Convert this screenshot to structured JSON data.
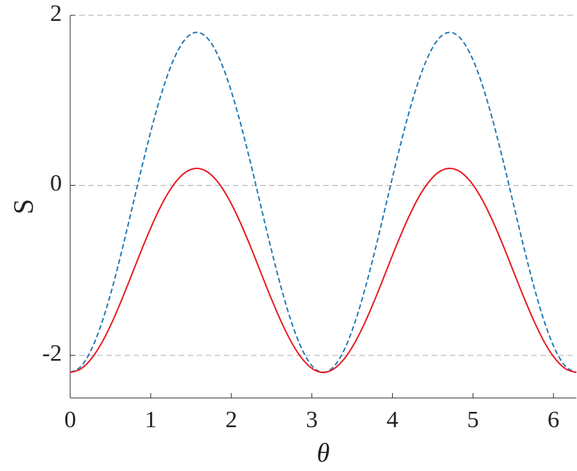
{
  "chart_data": {
    "type": "line",
    "xlabel": "θ",
    "ylabel": "S",
    "x": [
      0,
      0.131,
      0.262,
      0.393,
      0.524,
      0.654,
      0.785,
      0.916,
      1.047,
      1.178,
      1.309,
      1.44,
      1.571,
      1.702,
      1.833,
      1.963,
      2.094,
      2.225,
      2.356,
      2.487,
      2.618,
      2.749,
      2.88,
      3.011,
      3.142,
      3.272,
      3.403,
      3.534,
      3.665,
      3.796,
      3.927,
      4.058,
      4.189,
      4.32,
      4.451,
      4.581,
      4.712,
      4.843,
      4.974,
      5.105,
      5.236,
      5.367,
      5.498,
      5.629,
      5.76,
      5.89,
      6.021,
      6.152,
      6.283
    ],
    "series": [
      {
        "color": "#1f77b4",
        "dash": true,
        "values": [
          -2.2,
          -2.132,
          -1.932,
          -1.614,
          -1.2,
          -0.718,
          -0.2,
          0.318,
          0.8,
          1.214,
          1.532,
          1.732,
          1.8,
          1.732,
          1.532,
          1.214,
          0.8,
          0.318,
          -0.2,
          -0.718,
          -1.2,
          -1.614,
          -1.932,
          -2.132,
          -2.2,
          -2.132,
          -1.932,
          -1.614,
          -1.2,
          -0.718,
          -0.2,
          0.318,
          0.8,
          1.214,
          1.532,
          1.732,
          1.8,
          1.732,
          1.532,
          1.214,
          0.8,
          0.318,
          -0.2,
          -0.718,
          -1.2,
          -1.614,
          -1.932,
          -2.132,
          -2.2
        ]
      },
      {
        "color": "#e8141c",
        "dash": false,
        "values": [
          -2.2,
          -2.159,
          -2.039,
          -1.849,
          -1.6,
          -1.311,
          -1,
          -0.689,
          -0.4,
          -0.151,
          0.039,
          0.159,
          0.2,
          0.159,
          0.039,
          -0.151,
          -0.4,
          -0.689,
          -1,
          -1.311,
          -1.6,
          -1.849,
          -2.039,
          -2.159,
          -2.2,
          -2.159,
          -2.039,
          -1.849,
          -1.6,
          -1.311,
          -1,
          -0.689,
          -0.4,
          -0.151,
          0.039,
          0.159,
          0.2,
          0.159,
          0.039,
          -0.151,
          -0.4,
          -0.689,
          -1,
          -1.311,
          -1.6,
          -1.849,
          -2.039,
          -2.159,
          -2.2
        ]
      }
    ],
    "xlim": [
      0,
      6.2832
    ],
    "ylim": [
      -2.5,
      2
    ],
    "xticks": [
      0,
      1,
      2,
      3,
      4,
      5,
      6
    ],
    "yticks": [
      -2,
      0,
      2
    ],
    "grid": true
  }
}
